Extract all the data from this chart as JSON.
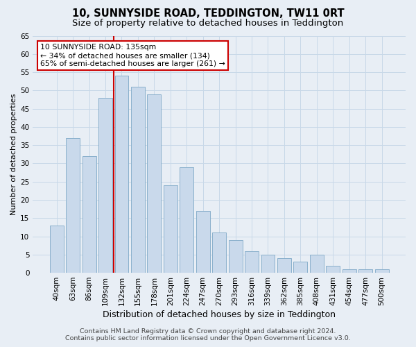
{
  "title": "10, SUNNYSIDE ROAD, TEDDINGTON, TW11 0RT",
  "subtitle": "Size of property relative to detached houses in Teddington",
  "xlabel": "Distribution of detached houses by size in Teddington",
  "ylabel": "Number of detached properties",
  "footer_line1": "Contains HM Land Registry data © Crown copyright and database right 2024.",
  "footer_line2": "Contains public sector information licensed under the Open Government Licence v3.0.",
  "categories": [
    "40sqm",
    "63sqm",
    "86sqm",
    "109sqm",
    "132sqm",
    "155sqm",
    "178sqm",
    "201sqm",
    "224sqm",
    "247sqm",
    "270sqm",
    "293sqm",
    "316sqm",
    "339sqm",
    "362sqm",
    "385sqm",
    "408sqm",
    "431sqm",
    "454sqm",
    "477sqm",
    "500sqm"
  ],
  "values": [
    13,
    37,
    32,
    48,
    54,
    51,
    49,
    24,
    29,
    17,
    11,
    9,
    6,
    5,
    4,
    3,
    5,
    2,
    1,
    1,
    1
  ],
  "bar_color_fill": "#c9d9eb",
  "bar_color_edge": "#8ab0cc",
  "bar_width": 0.85,
  "property_bin_index": 4,
  "annotation_title": "10 SUNNYSIDE ROAD: 135sqm",
  "annotation_line1": "← 34% of detached houses are smaller (134)",
  "annotation_line2": "65% of semi-detached houses are larger (261) →",
  "vline_color": "#cc0000",
  "annotation_box_facecolor": "#ffffff",
  "annotation_box_edgecolor": "#cc0000",
  "ylim": [
    0,
    65
  ],
  "yticks": [
    0,
    5,
    10,
    15,
    20,
    25,
    30,
    35,
    40,
    45,
    50,
    55,
    60,
    65
  ],
  "grid_color": "#c8d8e8",
  "bg_color": "#e8eef5",
  "title_fontsize": 10.5,
  "subtitle_fontsize": 9.5,
  "xlabel_fontsize": 9,
  "ylabel_fontsize": 8,
  "tick_fontsize": 7.5,
  "annotation_fontsize": 7.8,
  "footer_fontsize": 6.8
}
